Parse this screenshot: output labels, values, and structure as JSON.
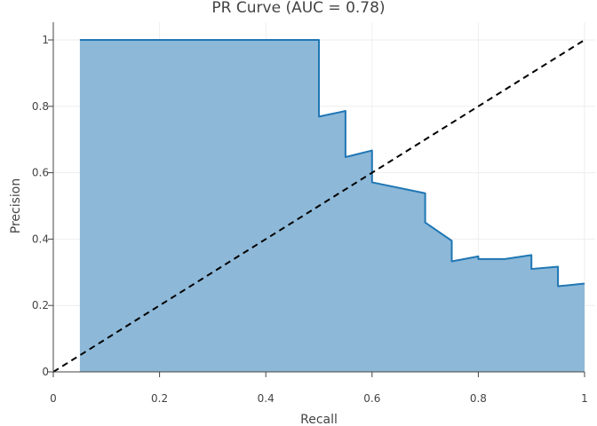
{
  "chart_data": {
    "type": "area",
    "title": "PR Curve (AUC = 0.78)",
    "xlabel": "Recall",
    "ylabel": "Precision",
    "xlim": [
      0,
      1
    ],
    "ylim": [
      0,
      1
    ],
    "x_ticks": [
      "0",
      "0.2",
      "0.4",
      "0.6",
      "0.8",
      "1"
    ],
    "y_ticks": [
      "0",
      "0.2",
      "0.4",
      "0.6",
      "0.8",
      "1"
    ],
    "grid": true,
    "series": [
      {
        "line_color": "#1f77b4",
        "fill_color": "#8db8d8",
        "x": [
          0.05,
          0.5,
          0.5,
          0.55,
          0.55,
          0.6,
          0.6,
          0.7,
          0.7,
          0.75,
          0.75,
          0.8,
          0.8,
          0.85,
          0.9,
          0.9,
          0.95,
          0.95,
          1.0
        ],
        "y": [
          1.0,
          1.0,
          0.769,
          0.786,
          0.647,
          0.667,
          0.571,
          0.538,
          0.45,
          0.395,
          0.333,
          0.348,
          0.34,
          0.34,
          0.352,
          0.31,
          0.317,
          0.258,
          0.266
        ]
      },
      {
        "line_color": "#000000",
        "dash": "dash",
        "x": [
          0,
          1
        ],
        "y": [
          0,
          1
        ]
      }
    ]
  }
}
